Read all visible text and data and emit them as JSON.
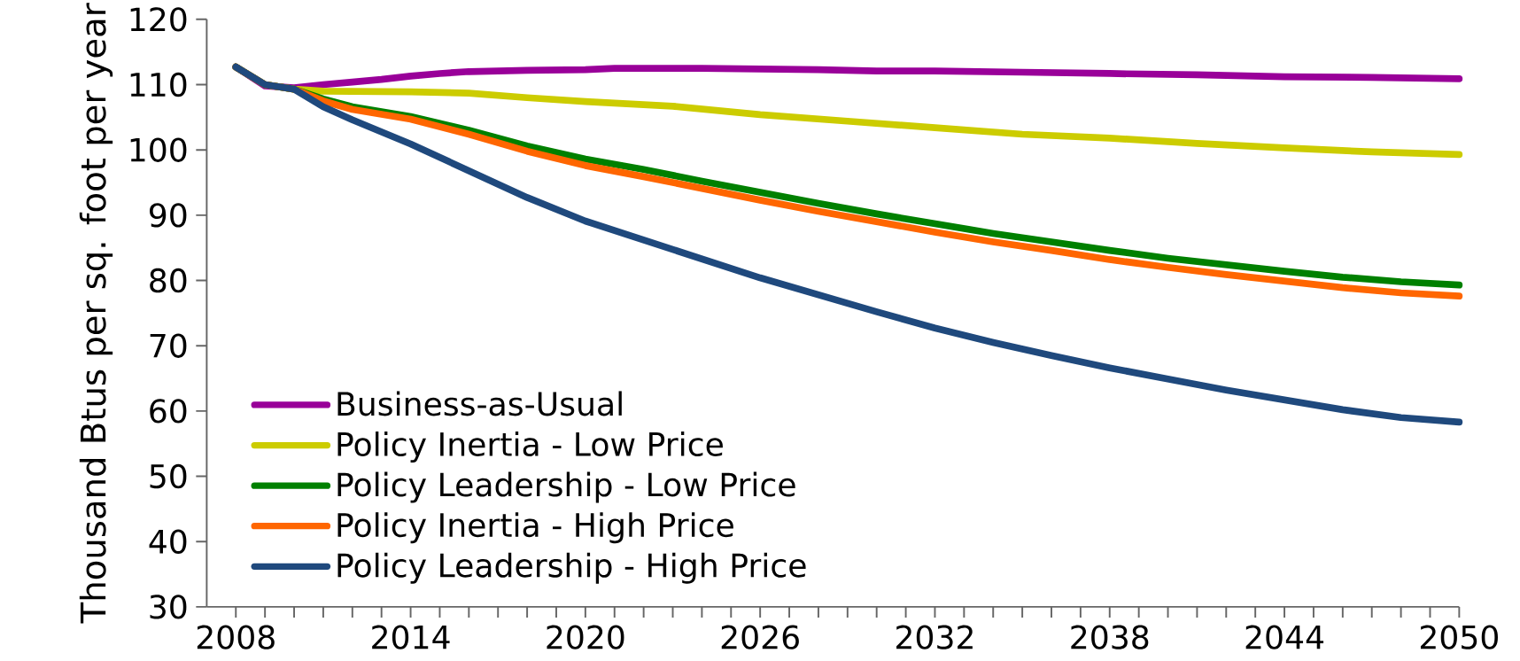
{
  "chart_data": {
    "type": "line",
    "ylabel": "Thousand Btus per sq. foot per year",
    "xlim": [
      2007,
      2050
    ],
    "ylim": [
      30,
      120
    ],
    "xticks": [
      2008,
      2014,
      2020,
      2026,
      2032,
      2038,
      2044,
      2050
    ],
    "yticks": [
      30,
      40,
      50,
      60,
      70,
      80,
      90,
      100,
      110,
      120
    ],
    "legend": "bottom left",
    "grid": false,
    "marker": "none",
    "line_style": "solid",
    "series": [
      {
        "name": "Business-as-Usual",
        "color": "#990099",
        "x": [
          2008,
          2009,
          2010,
          2011,
          2012,
          2013,
          2014,
          2015,
          2016,
          2018,
          2020,
          2021,
          2024,
          2026,
          2028,
          2030,
          2032,
          2035,
          2038,
          2041,
          2044,
          2047,
          2050
        ],
        "values": [
          112.7,
          109.8,
          109.5,
          110,
          110.4,
          110.8,
          111.3,
          111.7,
          112,
          112.2,
          112.3,
          112.5,
          112.5,
          112.4,
          112.3,
          112.1,
          112.1,
          111.9,
          111.7,
          111.5,
          111.2,
          111.1,
          110.9
        ]
      },
      {
        "name": "Policy Inertia - Low Price",
        "color": "#cccc00",
        "x": [
          2008,
          2009,
          2010,
          2011,
          2014,
          2016,
          2018,
          2020,
          2023,
          2026,
          2029,
          2032,
          2035,
          2038,
          2041,
          2044,
          2047,
          2050
        ],
        "values": [
          112.7,
          110,
          109.3,
          109,
          108.9,
          108.7,
          108,
          107.4,
          106.7,
          105.4,
          104.4,
          103.4,
          102.4,
          101.8,
          101,
          100.3,
          99.7,
          99.3
        ]
      },
      {
        "name": "Policy Leadership - Low Price",
        "color": "#008000",
        "x": [
          2008,
          2009,
          2010,
          2011,
          2012,
          2014,
          2016,
          2018,
          2020,
          2022,
          2024,
          2026,
          2028,
          2030,
          2032,
          2034,
          2036,
          2038,
          2040,
          2042,
          2044,
          2046,
          2048,
          2050
        ],
        "values": [
          112.7,
          110,
          109.3,
          107.8,
          106.6,
          105.1,
          103,
          100.6,
          98.6,
          97,
          95.2,
          93.5,
          91.8,
          90.2,
          88.7,
          87.2,
          85.9,
          84.6,
          83.4,
          82.4,
          81.4,
          80.5,
          79.8,
          79.3
        ]
      },
      {
        "name": "Policy Inertia - High Price",
        "color": "#ff6600",
        "x": [
          2008,
          2009,
          2010,
          2011,
          2012,
          2014,
          2016,
          2018,
          2020,
          2022,
          2024,
          2026,
          2028,
          2030,
          2032,
          2034,
          2036,
          2038,
          2040,
          2042,
          2044,
          2046,
          2048,
          2050
        ],
        "values": [
          112.7,
          110,
          109.3,
          107.5,
          106.2,
          104.7,
          102.4,
          99.8,
          97.6,
          95.9,
          94.1,
          92.3,
          90.6,
          89,
          87.4,
          85.9,
          84.6,
          83.2,
          82,
          80.9,
          79.9,
          78.9,
          78.1,
          77.6
        ]
      },
      {
        "name": "Policy Leadership - High Price",
        "color": "#1f497d",
        "x": [
          2008,
          2009,
          2010,
          2011,
          2012,
          2014,
          2016,
          2018,
          2020,
          2022,
          2024,
          2026,
          2028,
          2030,
          2032,
          2034,
          2036,
          2038,
          2040,
          2042,
          2044,
          2046,
          2048,
          2050
        ],
        "values": [
          112.7,
          110,
          109.3,
          106.6,
          104.6,
          100.9,
          96.8,
          92.7,
          89.1,
          86.2,
          83.3,
          80.4,
          77.8,
          75.2,
          72.7,
          70.5,
          68.5,
          66.6,
          64.9,
          63.2,
          61.7,
          60.2,
          59,
          58.3
        ]
      }
    ]
  }
}
